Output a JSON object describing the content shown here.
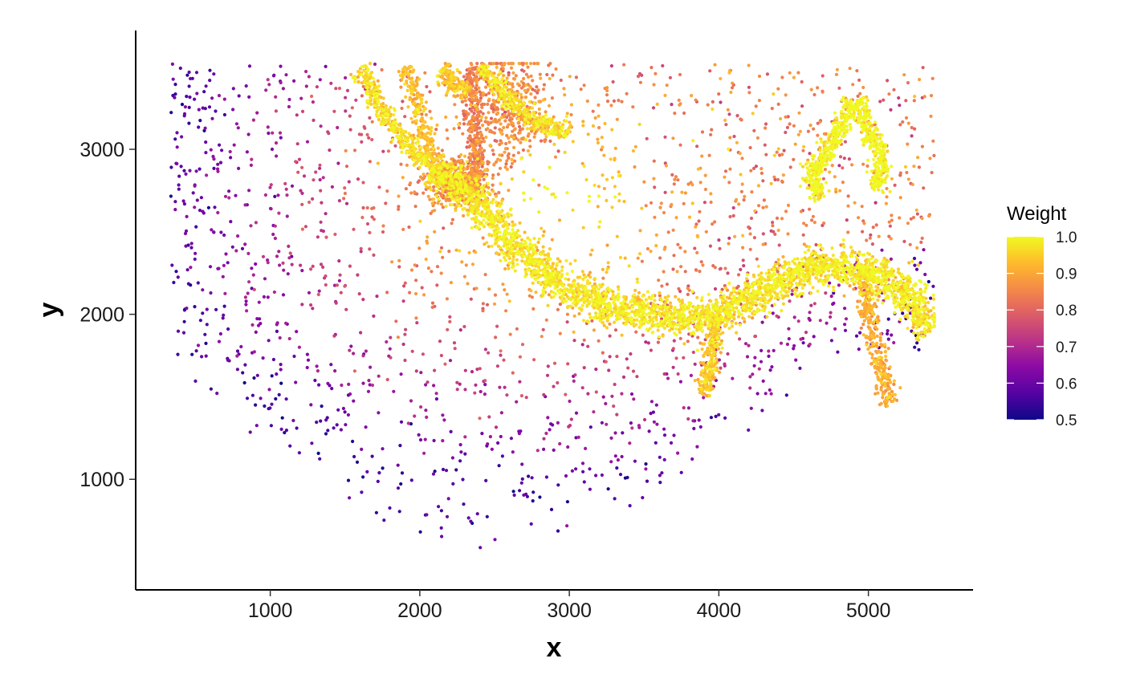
{
  "chart_data": {
    "type": "scatter",
    "xlabel": "x",
    "ylabel": "y",
    "xlim": [
      100,
      5700
    ],
    "ylim": [
      330,
      3720
    ],
    "x_ticks": [
      1000,
      2000,
      3000,
      4000,
      5000
    ],
    "y_ticks": [
      1000,
      2000,
      3000
    ],
    "grid": false,
    "legend": {
      "title": "Weight",
      "position": "right",
      "range": [
        0.5,
        1.0
      ],
      "ticks": [
        0.5,
        0.6,
        0.7,
        0.8,
        0.9,
        1.0
      ],
      "tick_labels": [
        "0.5",
        "0.6",
        "0.7",
        "0.8",
        "0.9",
        "1.0"
      ]
    },
    "colormap": "plasma",
    "colors": {
      "low": "#0d0887",
      "high": "#f0f921"
    },
    "point_count": 5680,
    "structures": [
      {
        "shape": "arc",
        "points": [
          [
            2080,
            2880
          ],
          [
            2300,
            2760
          ],
          [
            2600,
            2450
          ],
          [
            2900,
            2200
          ],
          [
            3300,
            2030
          ],
          [
            3700,
            1980
          ],
          [
            4000,
            1980
          ],
          [
            4250,
            2120
          ],
          [
            4500,
            2250
          ],
          [
            4800,
            2300
          ],
          [
            5050,
            2250
          ],
          [
            5250,
            2140
          ],
          [
            5420,
            1900
          ]
        ],
        "weight": 0.97
      },
      {
        "shape": "strand",
        "points": [
          [
            2380,
            2780
          ],
          [
            2370,
            3050
          ],
          [
            2350,
            3500
          ]
        ],
        "weight": 0.83
      },
      {
        "shape": "strand",
        "points": [
          [
            2150,
            3500
          ],
          [
            2200,
            3400
          ],
          [
            2330,
            3350
          ]
        ],
        "weight": 0.93
      },
      {
        "shape": "strand",
        "points": [
          [
            1600,
            3500
          ],
          [
            1700,
            3300
          ],
          [
            1900,
            3050
          ],
          [
            2050,
            2900
          ]
        ],
        "weight": 0.96
      },
      {
        "shape": "strand",
        "points": [
          [
            2400,
            3500
          ],
          [
            2600,
            3300
          ],
          [
            2800,
            3150
          ],
          [
            3000,
            3100
          ]
        ],
        "weight": 0.96
      },
      {
        "shape": "strand",
        "points": [
          [
            1900,
            3500
          ],
          [
            2050,
            3050
          ],
          [
            2150,
            2800
          ]
        ],
        "weight": 0.92
      },
      {
        "shape": "blob",
        "points": [
          [
            2580,
            3250
          ]
        ],
        "spread": [
          150,
          180
        ],
        "weight": 0.86
      },
      {
        "shape": "blob",
        "points": [
          [
            2250,
            2800
          ]
        ],
        "spread": [
          110,
          70
        ],
        "weight": 0.85
      },
      {
        "shape": "strand",
        "points": [
          [
            4880,
            3300
          ],
          [
            4800,
            3100
          ],
          [
            4700,
            2950
          ],
          [
            4600,
            2850
          ]
        ],
        "weight": 0.99
      },
      {
        "shape": "strand",
        "points": [
          [
            4930,
            3300
          ],
          [
            5000,
            3100
          ],
          [
            5100,
            2950
          ]
        ],
        "weight": 0.99
      },
      {
        "shape": "strand",
        "points": [
          [
            4600,
            2850
          ],
          [
            4680,
            2700
          ]
        ],
        "weight": 0.99
      },
      {
        "shape": "strand",
        "points": [
          [
            5100,
            2950
          ],
          [
            5050,
            2750
          ]
        ],
        "weight": 0.99
      },
      {
        "shape": "strand",
        "points": [
          [
            4000,
            1980
          ],
          [
            3950,
            1750
          ],
          [
            3900,
            1500
          ]
        ],
        "weight": 0.93
      },
      {
        "shape": "strand",
        "points": [
          [
            4950,
            2250
          ],
          [
            5050,
            1800
          ],
          [
            5150,
            1450
          ]
        ],
        "weight": 0.9
      }
    ],
    "seed": 1337
  }
}
